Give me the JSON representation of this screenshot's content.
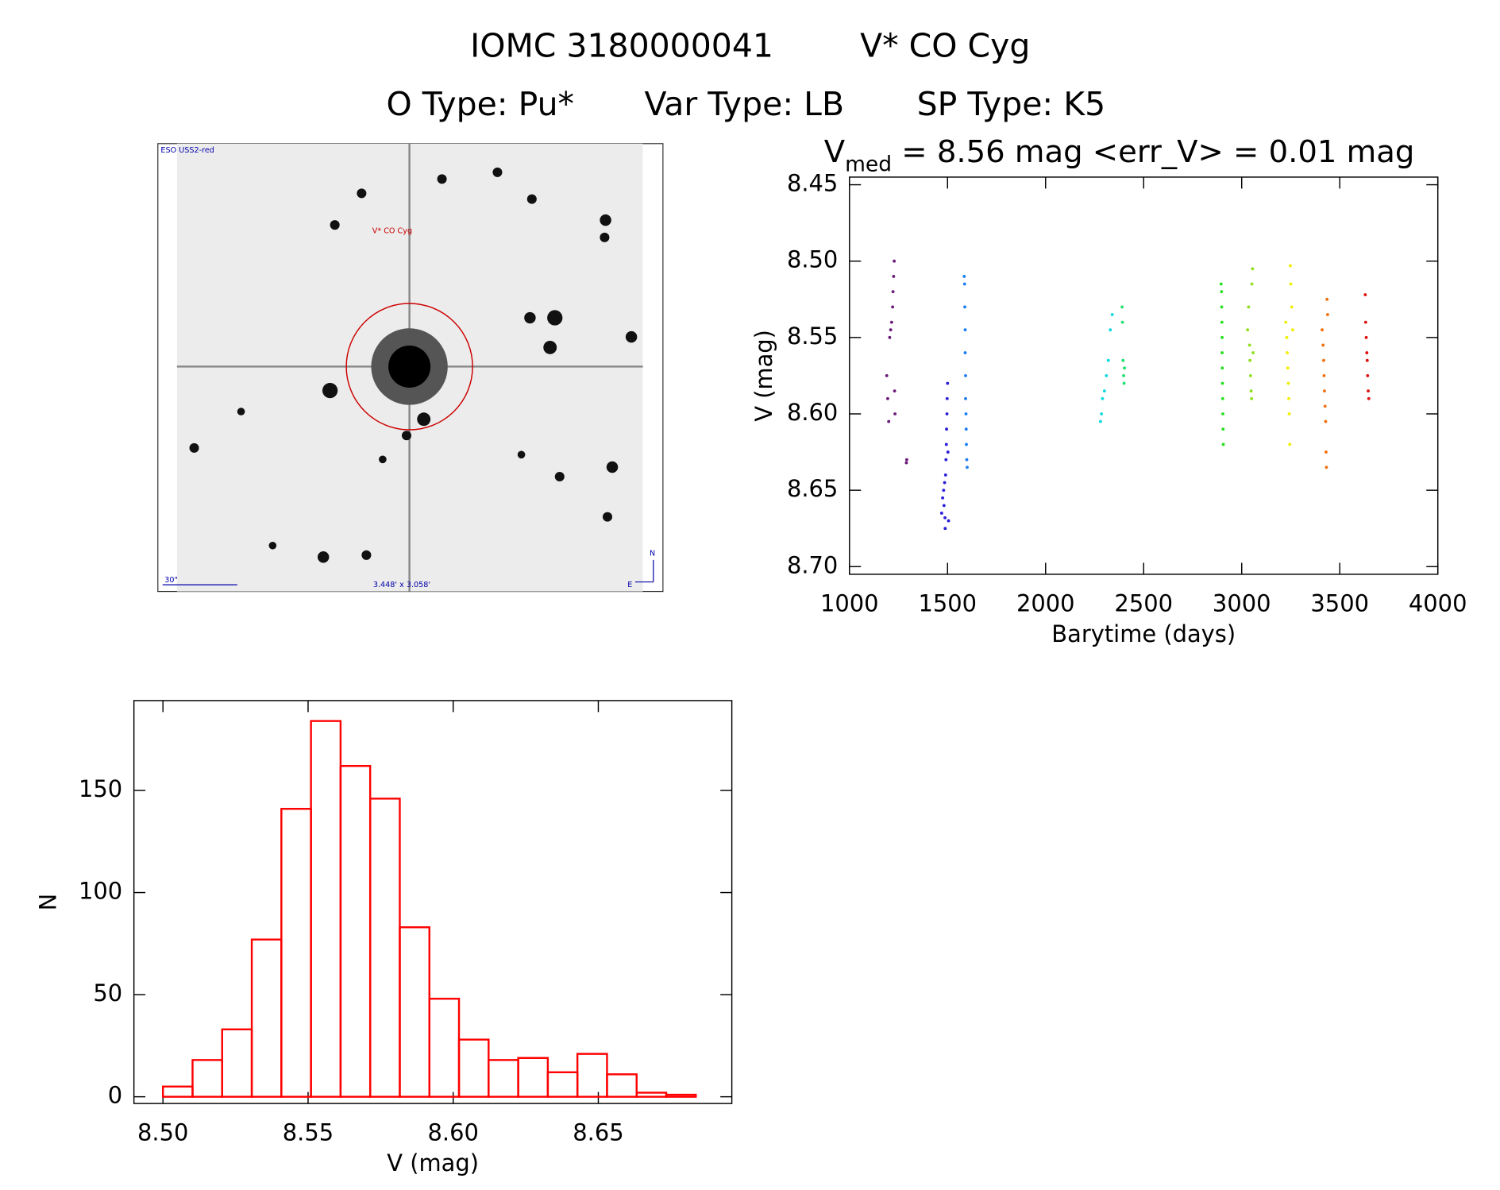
{
  "header": {
    "id": "IOMC 3180000041",
    "name": "V* CO Cyg",
    "otype": "O Type: Pu*",
    "vartype": "Var Type: LB",
    "sptype": "SP Type: K5"
  },
  "image": {
    "survey": "ESO USS2-red",
    "target": "V* CO Cyg",
    "scale": "30\"",
    "size": "3.448' x 3.058'",
    "north": "N",
    "east": "E"
  },
  "chart_data": [
    {
      "type": "scatter",
      "title_main": "V",
      "title_sub": "med",
      "title_rest": " = 8.56 mag <err_V> = 0.01 mag",
      "xlabel": "Barytime (days)",
      "ylabel": "V (mag)",
      "xlim": [
        1000,
        4000
      ],
      "xticks": [
        1000,
        1500,
        2000,
        2500,
        3000,
        3500,
        4000
      ],
      "ylim": [
        8.445,
        8.705
      ],
      "y_inverted": true,
      "yticks": [
        8.45,
        {
          "value": 8.5,
          "label": "8.50"
        },
        8.55,
        {
          "value": 8.6,
          "label": "8.60"
        },
        8.65,
        {
          "value": 8.7,
          "label": "8.70"
        }
      ],
      "series": [
        {
          "color": "#6a1b7a",
          "x": [
            1190,
            1195,
            1200,
            1205,
            1210,
            1215,
            1220,
            1222,
            1225,
            1228,
            1230,
            1232,
            1290,
            1292
          ],
          "values": [
            8.575,
            8.59,
            8.605,
            8.55,
            8.545,
            8.54,
            8.53,
            8.52,
            8.51,
            8.5,
            8.585,
            8.6,
            8.632,
            8.63
          ]
        },
        {
          "color": "#2a1ed8",
          "x": [
            1470,
            1475,
            1480,
            1482,
            1485,
            1487,
            1488,
            1490,
            1492,
            1494,
            1495,
            1497,
            1498,
            1500,
            1502,
            1505
          ],
          "values": [
            8.665,
            8.655,
            8.65,
            8.66,
            8.645,
            8.668,
            8.675,
            8.64,
            8.63,
            8.62,
            8.61,
            8.6,
            8.59,
            8.58,
            8.625,
            8.67
          ]
        },
        {
          "color": "#1e7ef0",
          "x": [
            1585,
            1587,
            1588,
            1590,
            1590,
            1592,
            1592,
            1594,
            1595,
            1596,
            1598,
            1600
          ],
          "values": [
            8.51,
            8.515,
            8.53,
            8.545,
            8.56,
            8.575,
            8.59,
            8.6,
            8.61,
            8.62,
            8.63,
            8.635
          ]
        },
        {
          "color": "#10d8e0",
          "x": [
            2280,
            2285,
            2290,
            2300,
            2310,
            2320,
            2330,
            2340
          ],
          "values": [
            8.605,
            8.6,
            8.59,
            8.585,
            8.575,
            8.565,
            8.545,
            8.535
          ]
        },
        {
          "color": "#20e070",
          "x": [
            2390,
            2392,
            2395,
            2398,
            2400,
            2402
          ],
          "values": [
            8.53,
            8.54,
            8.565,
            8.575,
            8.58,
            8.57
          ]
        },
        {
          "color": "#28e020",
          "x": [
            2895,
            2897,
            2898,
            2899,
            2900,
            2900,
            2901,
            2902,
            2903,
            2904,
            2905,
            2906
          ],
          "values": [
            8.515,
            8.52,
            8.53,
            8.54,
            8.55,
            8.56,
            8.57,
            8.58,
            8.59,
            8.6,
            8.61,
            8.62
          ]
        },
        {
          "color": "#90e020",
          "x": [
            3030,
            3035,
            3040,
            3042,
            3045,
            3048,
            3050,
            3052,
            3055,
            3058
          ],
          "values": [
            8.545,
            8.53,
            8.555,
            8.565,
            8.575,
            8.585,
            8.59,
            8.515,
            8.505,
            8.56
          ]
        },
        {
          "color": "#f0f000",
          "x": [
            3225,
            3230,
            3232,
            3235,
            3238,
            3240,
            3242,
            3245,
            3248,
            3250,
            3255,
            3260
          ],
          "values": [
            8.54,
            8.55,
            8.56,
            8.57,
            8.58,
            8.59,
            8.6,
            8.62,
            8.503,
            8.515,
            8.53,
            8.545
          ]
        },
        {
          "color": "#f07010",
          "x": [
            3410,
            3415,
            3418,
            3420,
            3422,
            3425,
            3428,
            3430,
            3432,
            3435,
            3438
          ],
          "values": [
            8.545,
            8.555,
            8.565,
            8.575,
            8.585,
            8.595,
            8.605,
            8.625,
            8.635,
            8.525,
            8.535
          ]
        },
        {
          "color": "#e01010",
          "x": [
            3630,
            3632,
            3635,
            3638,
            3640,
            3642,
            3645,
            3648
          ],
          "values": [
            8.522,
            8.54,
            8.55,
            8.56,
            8.565,
            8.575,
            8.585,
            8.59
          ]
        }
      ]
    },
    {
      "type": "histogram",
      "xlabel": "V (mag)",
      "ylabel": "N",
      "color": "#ff0000",
      "xlim": [
        8.49,
        8.696
      ],
      "xticks": [
        {
          "value": 8.5,
          "label": "8.50"
        },
        8.55,
        {
          "value": 8.6,
          "label": "8.60"
        },
        8.65
      ],
      "ylim": [
        -3.3,
        194
      ],
      "yticks": [
        0,
        50,
        100,
        150
      ],
      "bins": [
        8.5,
        8.5102,
        8.5204,
        8.5306,
        8.5408,
        8.551,
        8.5612,
        8.5714,
        8.5816,
        8.5918,
        8.602,
        8.6122,
        8.6224,
        8.6326,
        8.6428,
        8.653,
        8.6632,
        8.6734,
        8.6836
      ],
      "values": [
        5,
        18,
        33,
        77,
        141,
        184,
        162,
        146,
        83,
        48,
        28,
        18,
        19,
        12,
        21,
        11,
        2,
        1
      ]
    }
  ]
}
